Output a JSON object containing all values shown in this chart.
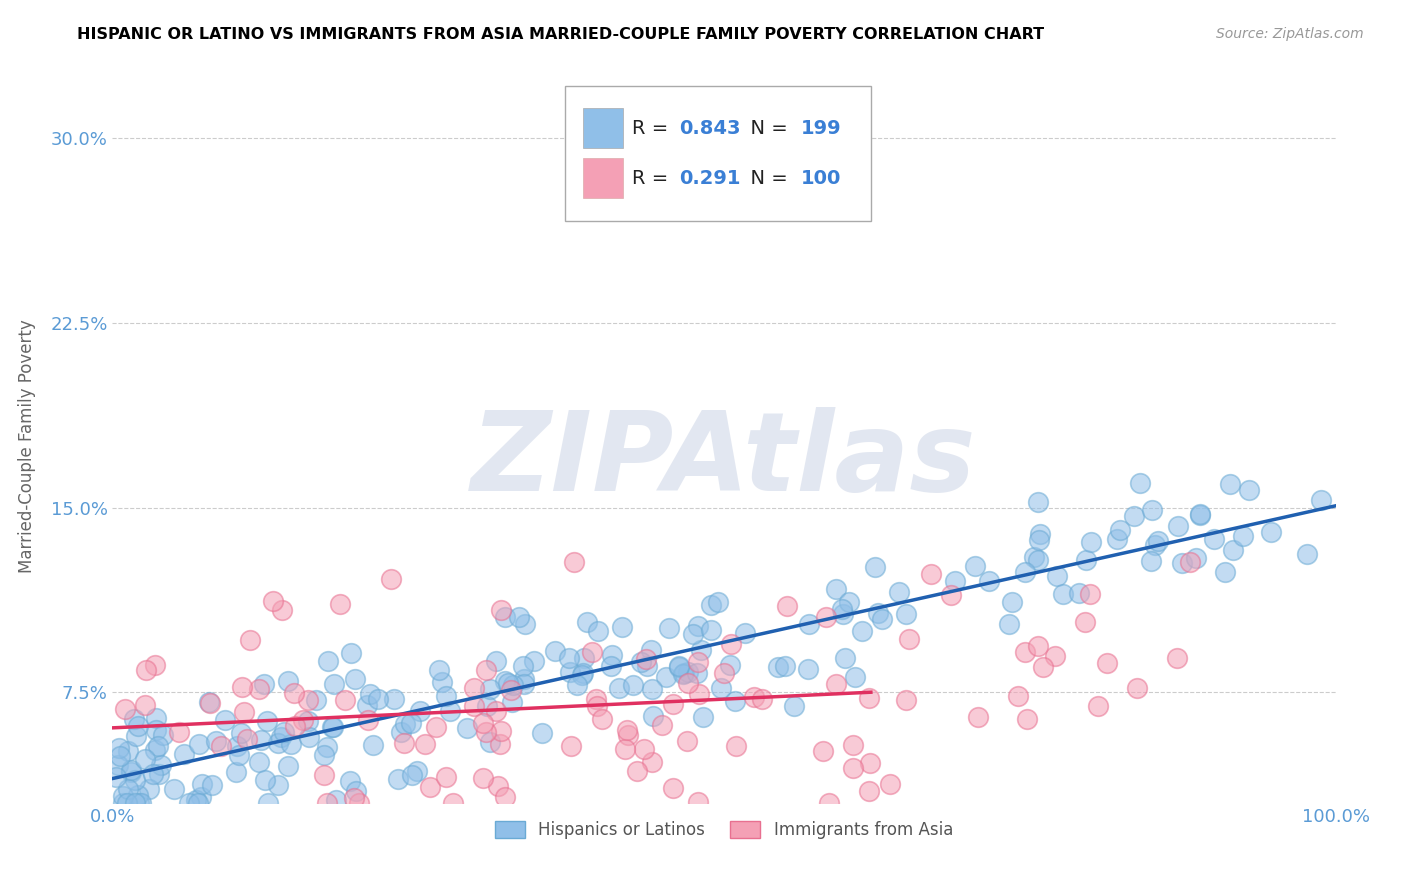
{
  "title": "HISPANIC OR LATINO VS IMMIGRANTS FROM ASIA MARRIED-COUPLE FAMILY POVERTY CORRELATION CHART",
  "source": "Source: ZipAtlas.com",
  "ylabel": "Married-Couple Family Poverty",
  "xlim": [
    0,
    1
  ],
  "ylim": [
    0.03,
    0.32
  ],
  "yticks": [
    0.075,
    0.15,
    0.225,
    0.3
  ],
  "ytick_labels": [
    "7.5%",
    "15.0%",
    "22.5%",
    "30.0%"
  ],
  "xtick_labels": [
    "0.0%",
    "100.0%"
  ],
  "blue_R": 0.843,
  "blue_N": 199,
  "pink_R": 0.291,
  "pink_N": 100,
  "blue_color": "#90bfe8",
  "pink_color": "#f4a0b5",
  "blue_edge_color": "#6aaad4",
  "pink_edge_color": "#e87090",
  "blue_line_color": "#2060b0",
  "pink_line_color": "#e03060",
  "legend_label_blue": "Hispanics or Latinos",
  "legend_label_pink": "Immigrants from Asia",
  "watermark": "ZIPAtlas",
  "background_color": "#ffffff",
  "grid_color": "#cccccc",
  "title_color": "#000000",
  "axis_label_color": "#666666",
  "tick_color": "#5b9bd5",
  "value_color": "#3a7fd5",
  "blue_slope": 0.115,
  "blue_intercept": 0.038,
  "pink_slope": 0.038,
  "pink_intercept": 0.058,
  "seed": 12
}
